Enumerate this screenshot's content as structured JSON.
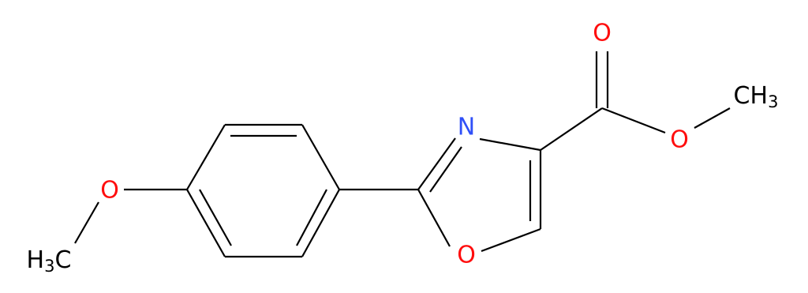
{
  "atoms": [
    {
      "symbol": "O"
    },
    {
      "symbol": "O"
    },
    {
      "symbol": "CH",
      "subscript": "3"
    },
    {
      "symbol": "N"
    },
    {
      "symbol": "O"
    },
    {
      "symbol": "O"
    },
    {
      "symbol": "H",
      "subscript": "3",
      "suffix": "C"
    }
  ]
}
